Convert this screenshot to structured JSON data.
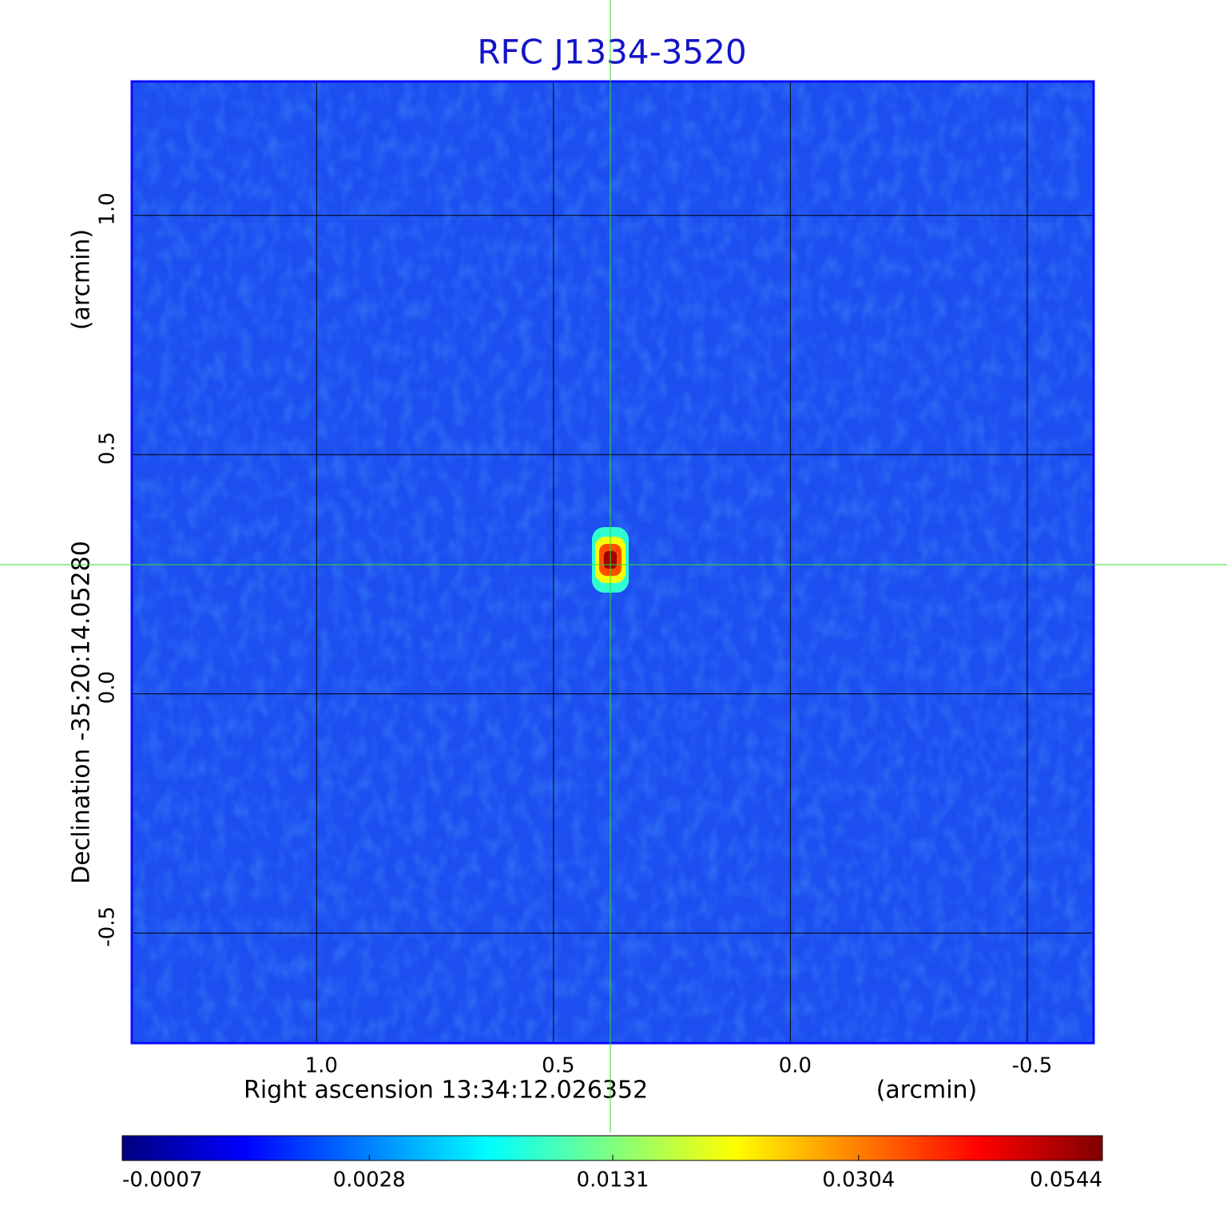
{
  "chart_data": {
    "type": "image",
    "title": "RFC J1334-3520",
    "x_label": "Right ascension  13:34:12.026352",
    "x_unit": "(arcmin)",
    "y_label": "Declination  -35:20:14.05280",
    "y_unit": "(arcmin)",
    "xlim": [
      1.39,
      -0.64
    ],
    "ylim": [
      -0.73,
      1.28
    ],
    "xticks": [
      {
        "value": 1,
        "label": "1.0"
      },
      0.5,
      {
        "value": 0,
        "label": "0.0"
      },
      -0.5
    ],
    "yticks": [
      {
        "value": 1,
        "label": "1.0"
      },
      0.5,
      {
        "value": 0,
        "label": "0.0"
      },
      -0.5
    ],
    "grid": true,
    "crosshair": {
      "x": 0.38,
      "y": 0.27
    },
    "source": {
      "x": 0.38,
      "y": 0.28,
      "peak": 0.0544
    },
    "colormap": "jet",
    "cbar_scale": "sqrt",
    "clim": [
      -0.0007,
      0.0544
    ],
    "cbar_ticks": [
      -0.0007,
      0.0028,
      0.0131,
      0.0304,
      0.0544
    ]
  }
}
